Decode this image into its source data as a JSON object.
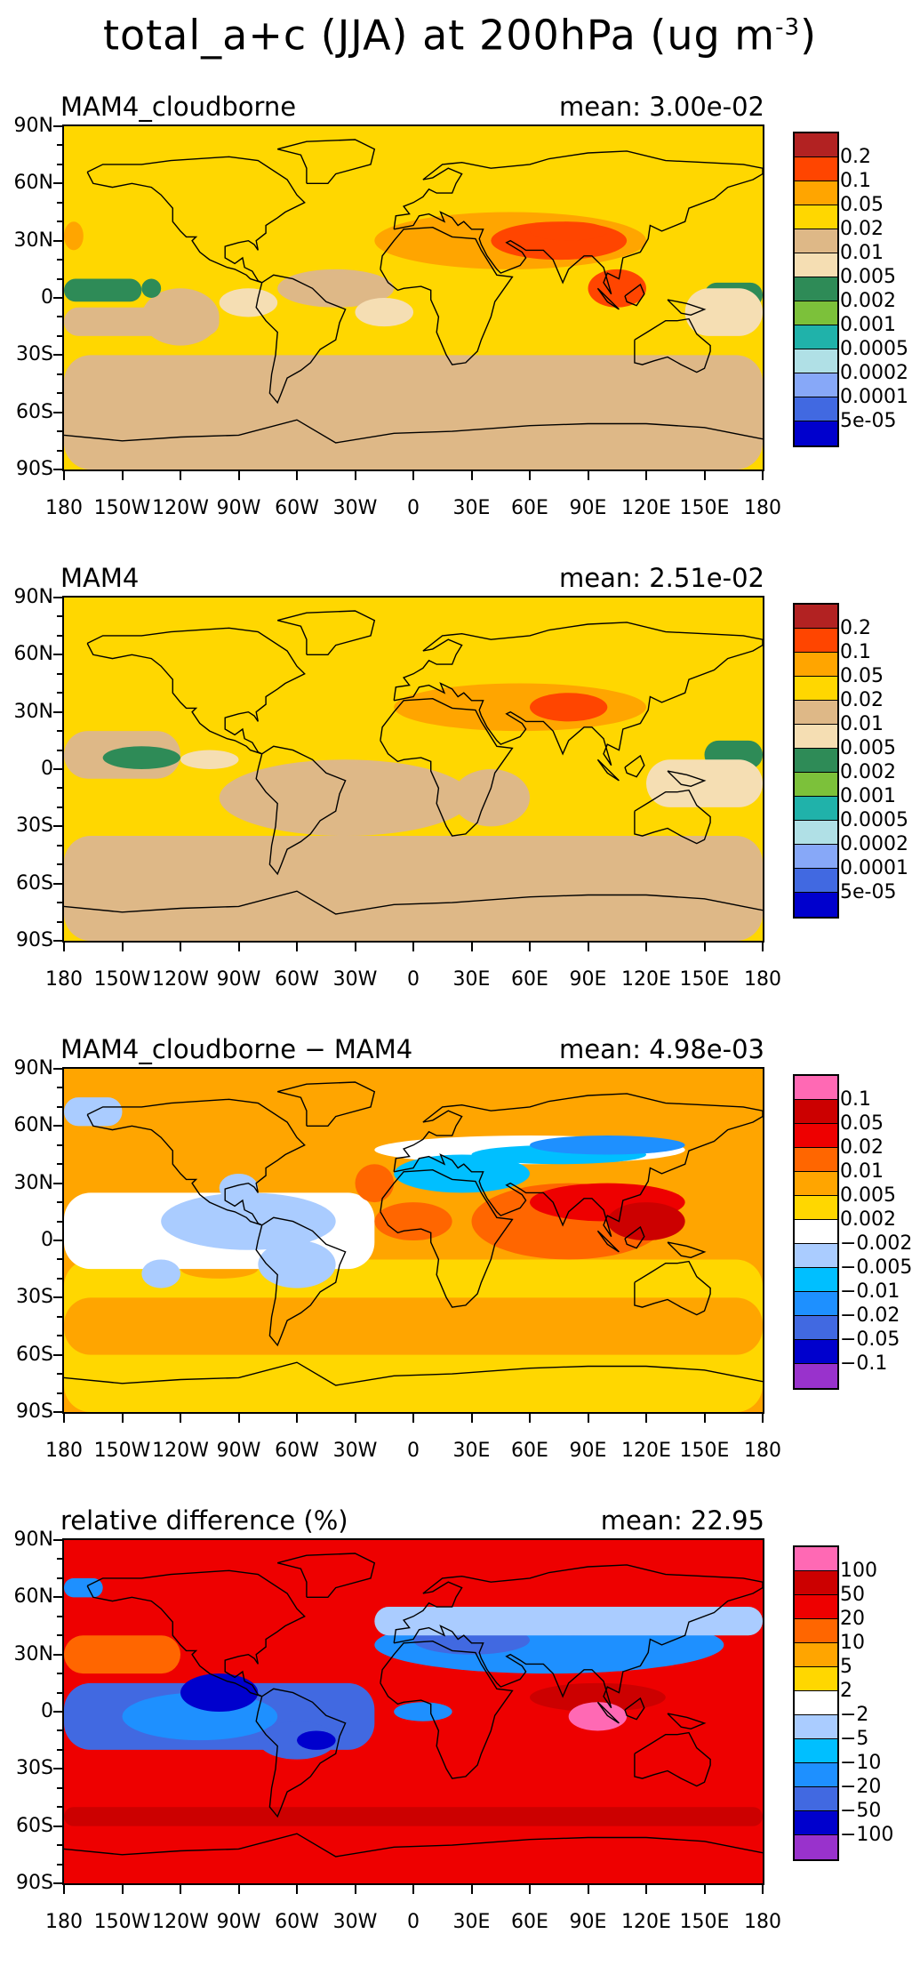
{
  "figure": {
    "title_prefix": "total_a+c (JJA) at 200hPa (ug m",
    "title_sup": "-3",
    "title_suffix": ")"
  },
  "axes": {
    "lat_labels": [
      "90N",
      "60N",
      "30N",
      "0",
      "30S",
      "60S",
      "90S"
    ],
    "lon_labels": [
      "180",
      "150W",
      "120W",
      "90W",
      "60W",
      "30W",
      "0",
      "30E",
      "60E",
      "90E",
      "120E",
      "150E",
      "180"
    ]
  },
  "palettes": {
    "abs": [
      "#b22222",
      "#ff4500",
      "#ffa500",
      "#ffd700",
      "#deb887",
      "#f5deb3",
      "#2e8b57",
      "#7cc13a",
      "#20b2aa",
      "#b0e0e6",
      "#87a8f8",
      "#4169e1",
      "#0000cd"
    ],
    "diff": [
      "#ff69b4",
      "#cc0000",
      "#ee0000",
      "#ff6600",
      "#ffa500",
      "#ffd700",
      "#ffffff",
      "#aaccff",
      "#00bfff",
      "#1e90ff",
      "#4169e1",
      "#0000cd",
      "#9932cc"
    ]
  },
  "panels": [
    {
      "title": "MAM4_cloudborne",
      "mean": "mean: 3.00e-02",
      "legend_labels": [
        "0.2",
        "0.1",
        "0.05",
        "0.02",
        "0.01",
        "0.005",
        "0.002",
        "0.001",
        "0.0005",
        "0.0002",
        "0.0001",
        "5e-05"
      ]
    },
    {
      "title": "MAM4",
      "mean": "mean: 2.51e-02",
      "legend_labels": [
        "0.2",
        "0.1",
        "0.05",
        "0.02",
        "0.01",
        "0.005",
        "0.002",
        "0.001",
        "0.0005",
        "0.0002",
        "0.0001",
        "5e-05"
      ]
    },
    {
      "title": "MAM4_cloudborne − MAM4",
      "mean": "mean: 4.98e-03",
      "legend_labels": [
        "0.1",
        "0.05",
        "0.02",
        "0.01",
        "0.005",
        "0.002",
        "−0.002",
        "−0.005",
        "−0.01",
        "−0.02",
        "−0.05",
        "−0.1"
      ]
    },
    {
      "title": "relative difference (%)",
      "mean": "mean: 22.95",
      "legend_labels": [
        "100",
        "50",
        "20",
        "10",
        "5",
        "2",
        "−2",
        "−5",
        "−10",
        "−20",
        "−50",
        "−100"
      ]
    }
  ]
}
